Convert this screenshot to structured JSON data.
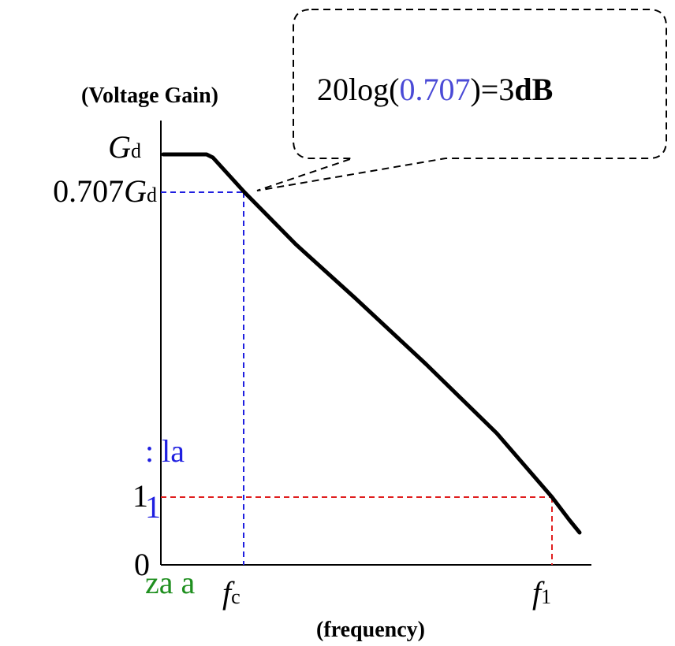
{
  "axes": {
    "y_title": "(Voltage Gain)",
    "x_title": "(frequency)",
    "origin_label": "0",
    "y_tick_one": "1",
    "y_tick_gd_main": "G",
    "y_tick_gd_sub": "d",
    "y_tick_gd707_coef": "0.707",
    "y_tick_gd707_main": "G",
    "y_tick_gd707_sub": "d",
    "x_tick_fc_main": "f",
    "x_tick_fc_sub": "c",
    "x_tick_f1_main": "f",
    "x_tick_f1_sub": "1"
  },
  "callout": {
    "prefix": "20log(",
    "value": "0.707",
    "suffix": ")=3",
    "unit": "dB",
    "value_color": "#4a4ad6"
  },
  "left_fragments": {
    "line1": ": la",
    "line2": "1",
    "line3": "za a",
    "line1_color": "#1f1fe0",
    "line2_color": "#1f1fe0",
    "line3_color": "#1f8f1f"
  },
  "colors": {
    "curve": "#000000",
    "fc_guide": "#1f1fe0",
    "unity_guide": "#e01f1f"
  }
}
